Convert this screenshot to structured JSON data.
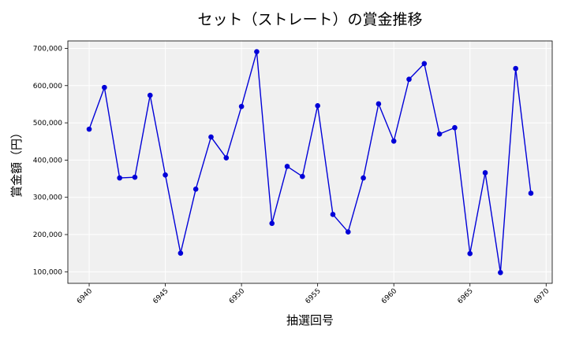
{
  "chart_data": {
    "type": "line",
    "title": "セット（ストレート）の賞金推移",
    "xlabel": "抽選回号",
    "ylabel": "賞金額（円）",
    "x": [
      6940,
      6941,
      6942,
      6943,
      6944,
      6945,
      6946,
      6947,
      6948,
      6949,
      6950,
      6951,
      6952,
      6953,
      6954,
      6955,
      6956,
      6957,
      6958,
      6959,
      6960,
      6961,
      6962,
      6963,
      6964,
      6965,
      6966,
      6967,
      6968,
      6969
    ],
    "series": [
      {
        "values": [
          483000,
          595000,
          352000,
          354000,
          574000,
          360000,
          150000,
          322000,
          462000,
          406000,
          544000,
          691000,
          230000,
          383000,
          356000,
          546000,
          254000,
          207000,
          352000,
          551000,
          451000,
          617000,
          659000,
          470000,
          487000,
          149000,
          366000,
          98000,
          646000,
          311000
        ],
        "color": "#0000d8"
      }
    ],
    "xticks": [
      "6940",
      "6945",
      "6950",
      "6955",
      "6960",
      "6965",
      "6970"
    ],
    "yticks": [
      "100,000",
      "200,000",
      "300,000",
      "400,000",
      "500,000",
      "600,000",
      "700,000"
    ],
    "xlim": [
      6938.6,
      6970.4
    ],
    "ylim": [
      69000,
      720000
    ],
    "grid": true,
    "background": "#f0f0f0",
    "grid_color": "#ffffff",
    "spine_color": "#000000"
  }
}
